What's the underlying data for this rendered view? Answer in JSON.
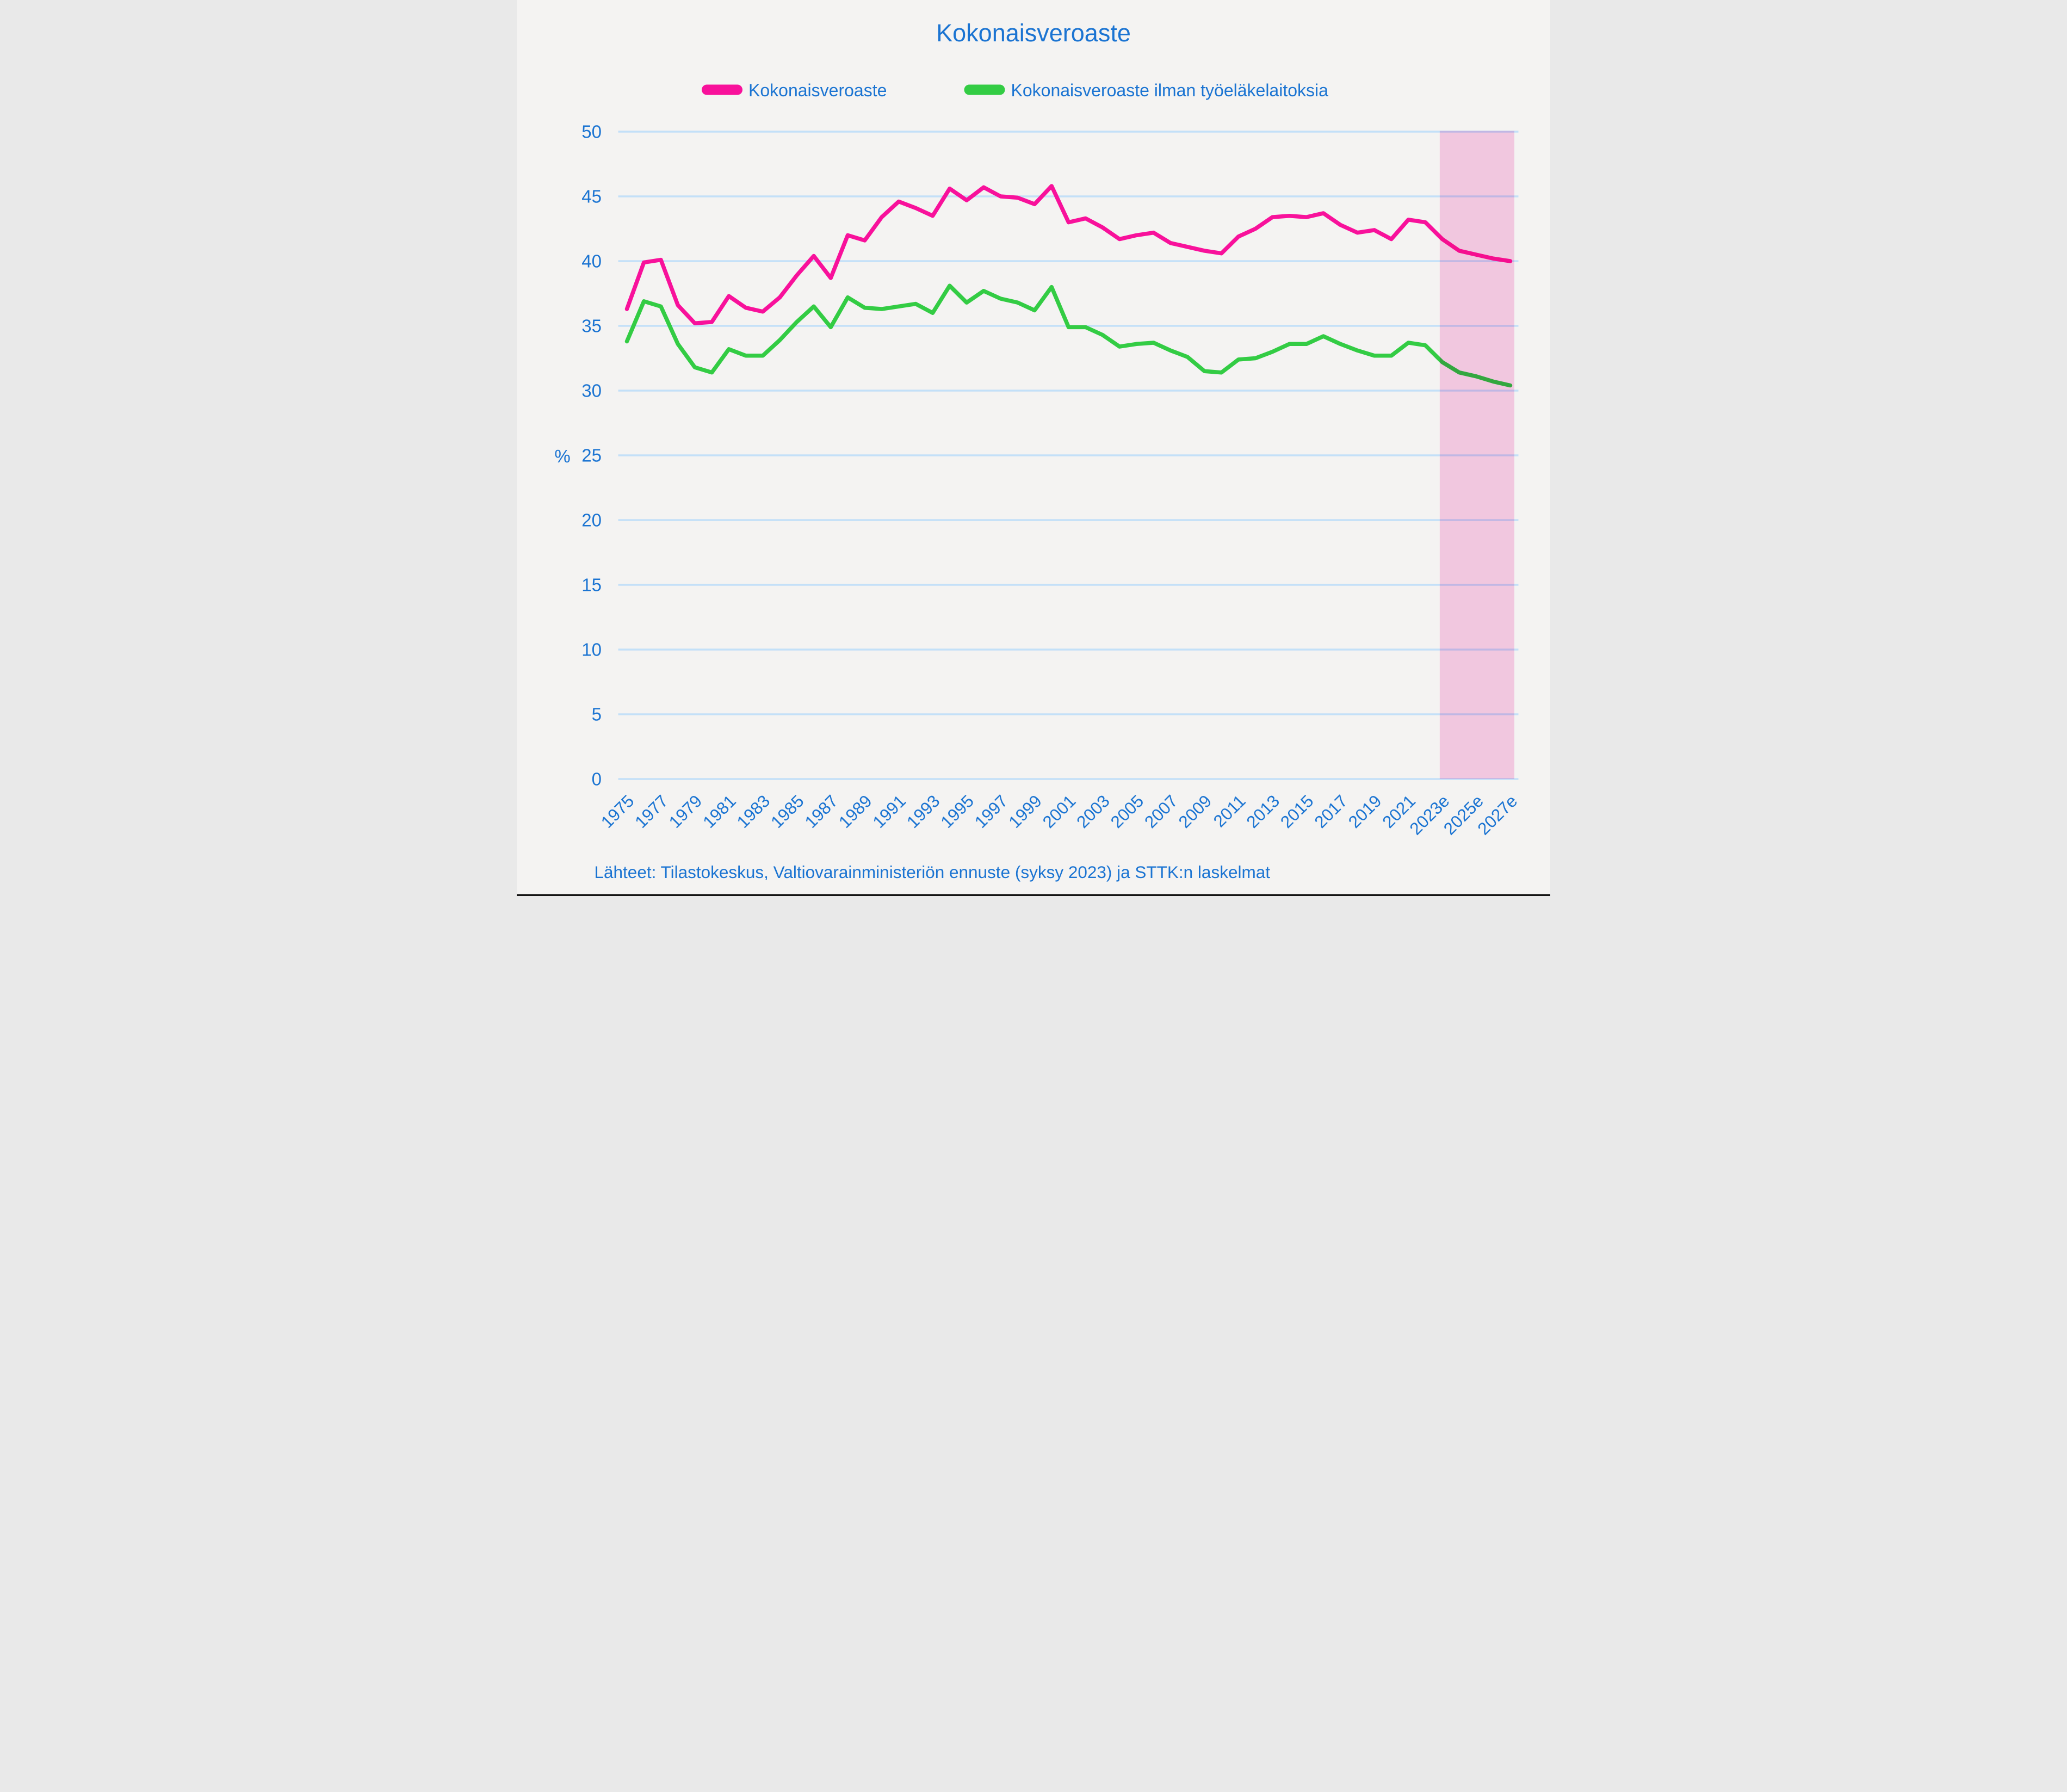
{
  "title": "Kokonaisveroaste",
  "legend": [
    {
      "label": "Kokonaisveroaste",
      "color": "#f8119b"
    },
    {
      "label": "Kokonaisveroaste ilman työeläkelaitoksia",
      "color": "#33cc44"
    }
  ],
  "y_axis": {
    "label": "%",
    "ticks": [
      0,
      5,
      10,
      15,
      20,
      25,
      30,
      35,
      40,
      45,
      50
    ]
  },
  "x_axis": {
    "tick_labels": [
      "1975",
      "1977",
      "1979",
      "1981",
      "1983",
      "1985",
      "1987",
      "1989",
      "1991",
      "1993",
      "1995",
      "1997",
      "1999",
      "2001",
      "2003",
      "2005",
      "2007",
      "2009",
      "2011",
      "2013",
      "2015",
      "2017",
      "2019",
      "2021",
      "2023e",
      "2025e",
      "2027e"
    ]
  },
  "source_note": "Lähteet: Tilastokeskus, Valtiovarainministeriön ennuste (syksy 2023) ja STTK:n laskelmat",
  "forecast_band": {
    "start_year": 2023,
    "covered_tick_labels": [
      "2023e",
      "2025e",
      "2027e"
    ],
    "color": "#fcd1eb"
  },
  "colors": {
    "text_blue": "#1b74d2",
    "gridline": "#c3e0f8",
    "background": "#f4f3f2",
    "bottom_border": "#141414",
    "series_total": "#f8119b",
    "series_excl_pension": "#33cc44",
    "forecast_band": "#fcd1eb"
  },
  "chart_data": {
    "type": "line",
    "title": "Kokonaisveroaste",
    "ylabel": "%",
    "ylim": [
      0,
      50
    ],
    "grid": "horizontal",
    "legend_position": "top",
    "x": [
      1975,
      1976,
      1977,
      1978,
      1979,
      1980,
      1981,
      1982,
      1983,
      1984,
      1985,
      1986,
      1987,
      1988,
      1989,
      1990,
      1991,
      1992,
      1993,
      1994,
      1995,
      1996,
      1997,
      1998,
      1999,
      2000,
      2001,
      2002,
      2003,
      2004,
      2005,
      2006,
      2007,
      2008,
      2009,
      2010,
      2011,
      2012,
      2013,
      2014,
      2015,
      2016,
      2017,
      2018,
      2019,
      2020,
      2021,
      2022,
      2023,
      2024,
      2025,
      2026,
      2027
    ],
    "x_tick_years": [
      1975,
      1977,
      1979,
      1981,
      1983,
      1985,
      1987,
      1989,
      1991,
      1993,
      1995,
      1997,
      1999,
      2001,
      2003,
      2005,
      2007,
      2009,
      2011,
      2013,
      2015,
      2017,
      2019,
      2021,
      2023,
      2025,
      2027
    ],
    "x_tick_labels": [
      "1975",
      "1977",
      "1979",
      "1981",
      "1983",
      "1985",
      "1987",
      "1989",
      "1991",
      "1993",
      "1995",
      "1997",
      "1999",
      "2001",
      "2003",
      "2005",
      "2007",
      "2009",
      "2011",
      "2013",
      "2015",
      "2017",
      "2019",
      "2021",
      "2023e",
      "2025e",
      "2027e"
    ],
    "forecast_band_years": [
      2023,
      2027
    ],
    "series": [
      {
        "name": "Kokonaisveroaste",
        "color": "#f8119b",
        "values": [
          36.3,
          39.9,
          40.1,
          36.6,
          35.2,
          35.3,
          37.3,
          36.4,
          36.1,
          37.2,
          38.9,
          40.4,
          38.7,
          42.0,
          41.6,
          43.4,
          44.6,
          44.1,
          43.5,
          45.6,
          44.7,
          45.7,
          45.0,
          44.9,
          44.4,
          45.8,
          43.0,
          43.3,
          42.6,
          41.7,
          42.0,
          42.2,
          41.4,
          41.1,
          40.8,
          40.6,
          41.9,
          42.5,
          43.4,
          43.5,
          43.4,
          43.7,
          42.8,
          42.2,
          42.4,
          41.7,
          43.2,
          43.0,
          41.7,
          40.8,
          40.5,
          40.2,
          40.0
        ]
      },
      {
        "name": "Kokonaisveroaste ilman työeläkelaitoksia",
        "color": "#33cc44",
        "values": [
          33.8,
          36.9,
          36.5,
          33.6,
          31.8,
          31.4,
          33.2,
          32.7,
          32.7,
          33.9,
          35.3,
          36.5,
          34.9,
          37.2,
          36.4,
          36.3,
          36.5,
          36.7,
          36.0,
          38.1,
          36.8,
          37.7,
          37.1,
          36.8,
          36.2,
          38.0,
          34.9,
          34.9,
          34.3,
          33.4,
          33.6,
          33.7,
          33.1,
          32.6,
          31.5,
          31.4,
          32.4,
          32.5,
          33.0,
          33.6,
          33.6,
          34.2,
          33.6,
          33.1,
          32.7,
          32.7,
          33.7,
          33.5,
          32.2,
          31.4,
          31.1,
          30.7,
          30.4
        ]
      }
    ]
  }
}
